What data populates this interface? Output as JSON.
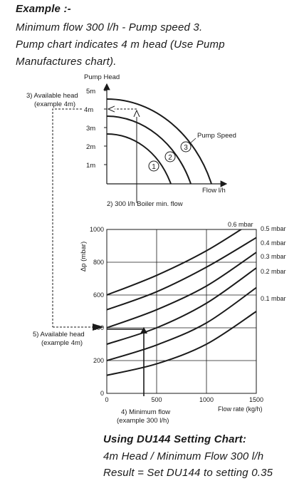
{
  "header": {
    "title": "Example :-",
    "line1": "Minimum flow 300 l/h - Pump speed 3.",
    "line2": "Pump chart indicates 4 m head (Use Pump",
    "line3": "Manufactures chart)."
  },
  "pump_chart": {
    "y_label": "Pump Head",
    "x_label": "Flow l/h",
    "y_ticks": [
      "5m",
      "4m",
      "3m",
      "2m",
      "1m"
    ],
    "curve_label": "Pump Speed",
    "speeds": [
      "1",
      "2",
      "3"
    ],
    "annotation_available_line1": "3) Available head",
    "annotation_available_line2": "(example 4m)",
    "annotation_min_flow": "2) 300 l/h Boiler min. flow"
  },
  "chart_data": {
    "type": "line",
    "ylabel": "Δp (mbar)",
    "xlabel": "Flow rate (kg/h)",
    "xlim": [
      0,
      1500
    ],
    "ylim": [
      0,
      1000
    ],
    "x_ticks": [
      "0",
      "500",
      "1000",
      "1500"
    ],
    "y_ticks": [
      "0",
      "200",
      "400",
      "600",
      "800",
      "1000"
    ],
    "grid": true,
    "series": [
      {
        "name": "0.6 mbar",
        "x": [
          0,
          500,
          1000,
          1500
        ],
        "y": [
          600,
          720,
          870,
          1060
        ]
      },
      {
        "name": "0.5 mbar",
        "x": [
          0,
          500,
          1000,
          1500
        ],
        "y": [
          510,
          620,
          770,
          950
        ]
      },
      {
        "name": "0.4 mbar",
        "x": [
          0,
          500,
          1000,
          1500
        ],
        "y": [
          400,
          510,
          655,
          860
        ]
      },
      {
        "name": "0.3 mbar",
        "x": [
          0,
          500,
          1000,
          1500
        ],
        "y": [
          300,
          400,
          550,
          765
        ]
      },
      {
        "name": "0.2 mbar",
        "x": [
          0,
          500,
          1000,
          1500
        ],
        "y": [
          200,
          295,
          430,
          645
        ]
      },
      {
        "name": "0.1 mbar",
        "x": [
          0,
          500,
          1000,
          1500
        ],
        "y": [
          110,
          180,
          300,
          500
        ]
      }
    ],
    "annotation_available_line1": "5) Available head",
    "annotation_available_line2": "(example 4m)",
    "annotation_min_flow_line1": "4) Minimum flow",
    "annotation_min_flow_line2": "(example 300 l/h)"
  },
  "footer": {
    "title": "Using DU144 Setting Chart:",
    "line1": "4m Head / Minimum Flow 300 l/h",
    "line2": "Result = Set DU144 to setting 0.35"
  }
}
